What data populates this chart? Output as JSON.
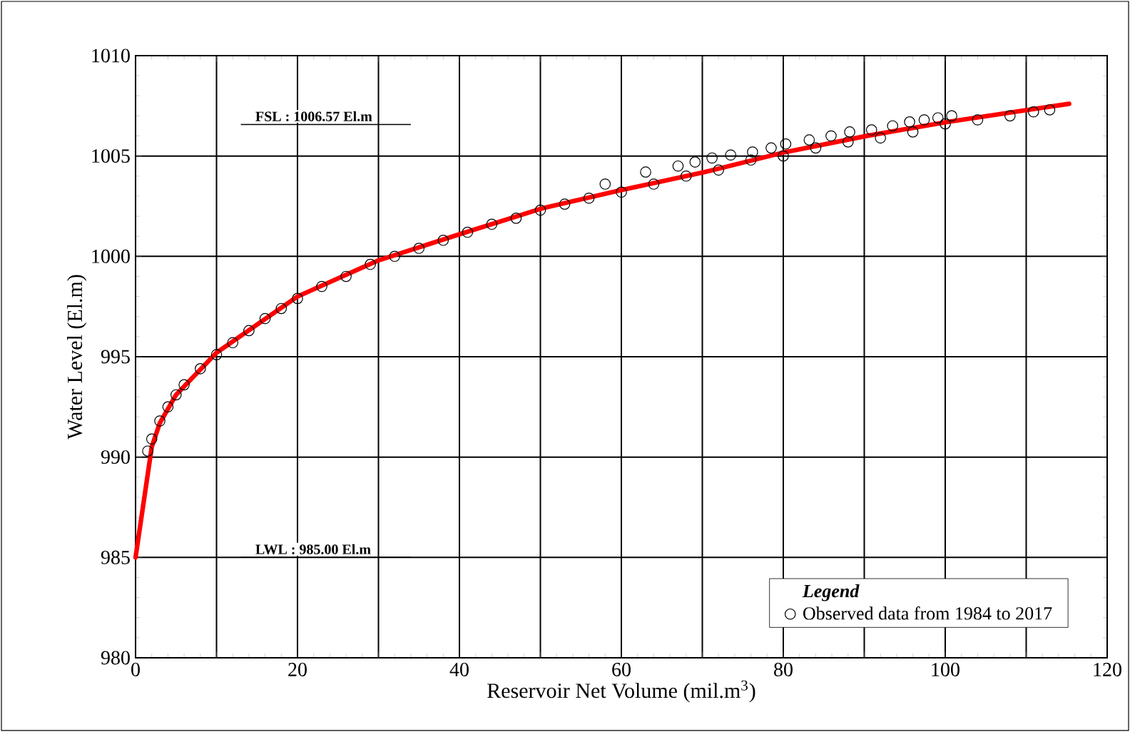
{
  "chart_data": {
    "type": "scatter",
    "xlabel": "Reservoir Net Volume (mil.m$^{3}$)",
    "ylabel": "Water Level (El.m)",
    "legend_title": "Legend",
    "xlim": [
      0,
      120
    ],
    "ylim": [
      980,
      1010
    ],
    "xticks": [
      0,
      {
        "value": 10,
        "label": null
      },
      20,
      {
        "value": 30,
        "label": null
      },
      40,
      {
        "value": 50,
        "label": null
      },
      60,
      {
        "value": 70,
        "label": null
      },
      80,
      {
        "value": 90,
        "label": null
      },
      100,
      {
        "value": 110,
        "label": null
      },
      120
    ],
    "yticks": [
      980,
      985,
      990,
      995,
      1000,
      1005,
      1010
    ],
    "grid": true,
    "legend": "bottom right",
    "ref_lines": [
      {
        "axis": "y",
        "value": 1006.57,
        "label": "FSL : 1006.57 El.m",
        "color": "#000000"
      },
      {
        "axis": "y",
        "value": 985,
        "label": "LWL : 985.00 El.m",
        "color": "#000000"
      }
    ],
    "series": [
      {
        "name": "Observed data from 1984 to 2017",
        "marker": "circle",
        "color": "#000000",
        "x": [
          1.5,
          2,
          3,
          4,
          5,
          6,
          8,
          10,
          12,
          14,
          16,
          18,
          20,
          23,
          26,
          29,
          32,
          35,
          38,
          41,
          44,
          47,
          50,
          53,
          56,
          58,
          60,
          63,
          64,
          67,
          68,
          69.1,
          71.2,
          72,
          73.5,
          76,
          76.2,
          78.5,
          80,
          80.3,
          83.2,
          84,
          85.9,
          88,
          88.2,
          90.9,
          92,
          93.5,
          95.6,
          96,
          97.4,
          99.1,
          100,
          100.8,
          104,
          108,
          110.9,
          112.9
        ],
        "values": [
          990.3,
          990.9,
          991.8,
          992.5,
          993.1,
          993.6,
          994.4,
          995.1,
          995.7,
          996.3,
          996.9,
          997.4,
          997.9,
          998.5,
          999.0,
          999.6,
          1000.0,
          1000.4,
          1000.8,
          1001.2,
          1001.6,
          1001.9,
          1002.3,
          1002.6,
          1002.9,
          1003.6,
          1003.2,
          1004.2,
          1003.6,
          1004.5,
          1004.0,
          1004.7,
          1004.9,
          1004.3,
          1005.05,
          1004.8,
          1005.2,
          1005.4,
          1005.0,
          1005.6,
          1005.8,
          1005.4,
          1006.0,
          1005.7,
          1006.2,
          1006.3,
          1005.9,
          1006.5,
          1006.7,
          1006.2,
          1006.8,
          1006.9,
          1006.6,
          1007.0,
          1006.8,
          1007.0,
          1007.2,
          1007.3
        ]
      },
      {
        "type": "line",
        "color": "#ff0000",
        "x": [
          0,
          2,
          3,
          5,
          10,
          20,
          30,
          40,
          50.3,
          60,
          70.3,
          80.3,
          90.3,
          100.3,
          110.3,
          115.3
        ],
        "values": [
          985,
          990.5,
          991.7,
          993.1,
          995.2,
          998,
          999.8,
          1001.1,
          1002.4,
          1003.3,
          1004.2,
          1005.2,
          1006.0,
          1006.7,
          1007.3,
          1007.6
        ]
      }
    ]
  }
}
